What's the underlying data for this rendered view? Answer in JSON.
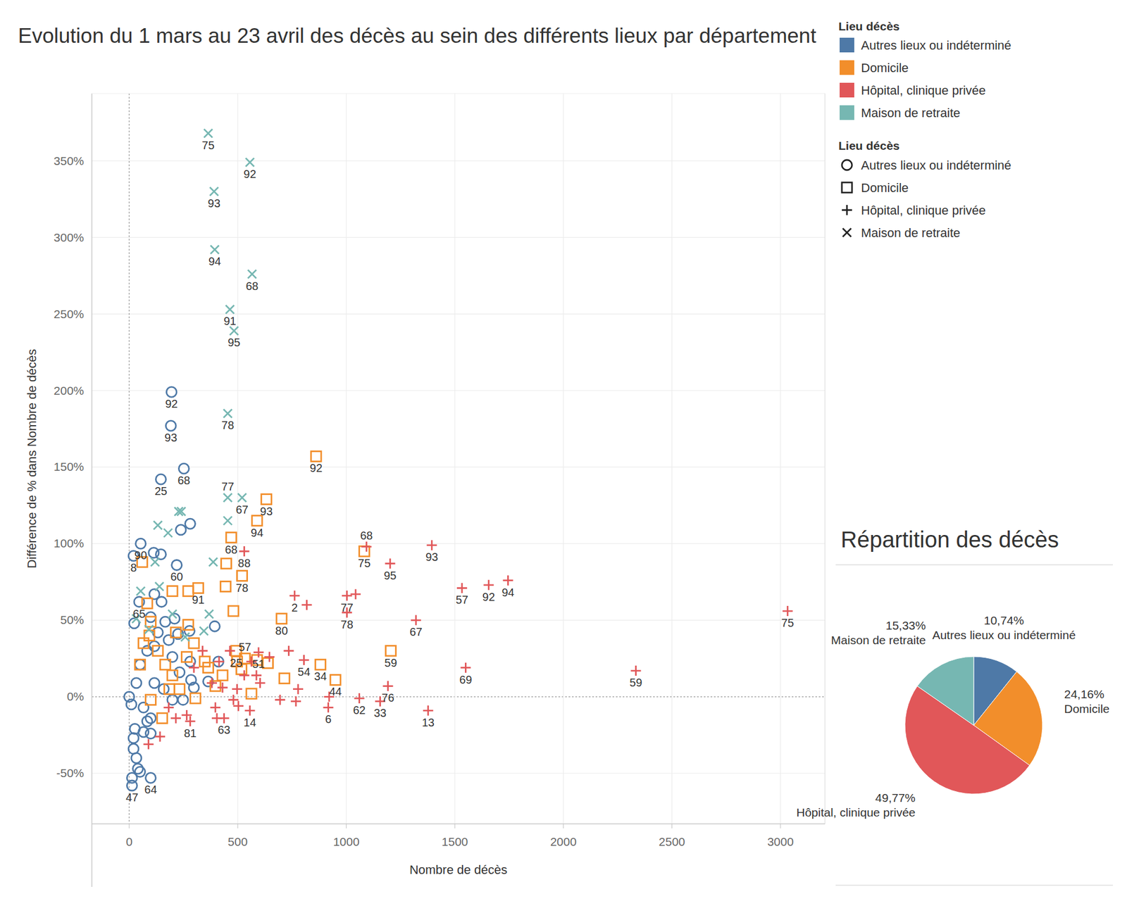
{
  "chart_data": [
    {
      "type": "scatter",
      "title": "Evolution du 1 mars au 23 avril des décès au sein des différents lieux par département",
      "x_label": "Nombre de décès",
      "y_label": "Différence de % dans Nombre de décès",
      "legend_title": "Lieu décès",
      "legend": "right",
      "grid": true,
      "xlim": [
        -172,
        3205
      ],
      "ylim": [
        -83,
        394
      ],
      "xticks": [
        0,
        500,
        1000,
        1500,
        2000,
        2500,
        3000
      ],
      "yticks": [
        {
          "value": -50,
          "label": "-50%"
        },
        {
          "value": 0,
          "label": "0%"
        },
        {
          "value": 50,
          "label": "50%"
        },
        {
          "value": 100,
          "label": "100%"
        },
        {
          "value": 150,
          "label": "150%"
        },
        {
          "value": 200,
          "label": "200%"
        },
        {
          "value": 250,
          "label": "250%"
        },
        {
          "value": 300,
          "label": "300%"
        },
        {
          "value": 350,
          "label": "350%"
        }
      ],
      "series": [
        {
          "name": "Autres lieux ou indéterminé",
          "color": "#4e79a7",
          "marker": "circle",
          "x": [
            195,
            192,
            146,
            252,
            281,
            238,
            53,
            20,
            113,
            146,
            219,
            46,
            13,
            13,
            99,
            394,
            411,
            23,
            26,
            20,
            20,
            33,
            40,
            50,
            0,
            10,
            99,
            66,
            83,
            99,
            33,
            50,
            83,
            116,
            132,
            166,
            209,
            99,
            116,
            149,
            182,
            199,
            232,
            281,
            285,
            298,
            248,
            199,
            159,
            116,
            66,
            364,
            225,
            278
          ],
          "values": [
            199,
            177,
            142,
            149,
            113,
            109,
            100,
            92,
            94,
            93,
            86,
            62,
            -58,
            -53,
            -53,
            46,
            23,
            48,
            -21,
            -27,
            -34,
            -40,
            -47,
            -49,
            0,
            -5,
            -24,
            -23,
            -16,
            -14,
            9,
            21,
            30,
            33,
            42,
            49,
            51,
            52,
            67,
            62,
            37,
            26,
            16,
            23,
            11,
            6,
            -2,
            -2,
            5,
            9,
            -7,
            10,
            41,
            43
          ],
          "point_labels": [
            "92",
            "93",
            "25",
            "68",
            null,
            null,
            "90",
            "8",
            null,
            null,
            "60",
            "65",
            "47",
            null,
            "64",
            null,
            null,
            null,
            null,
            null,
            null,
            null,
            null,
            null,
            null,
            null,
            null,
            null,
            null,
            null,
            null,
            null,
            null,
            null,
            null,
            null,
            null,
            null,
            null,
            null,
            null,
            null,
            null,
            null,
            null,
            null,
            null,
            null,
            null,
            null,
            null,
            null,
            null,
            null
          ]
        },
        {
          "name": "Domicile",
          "color": "#f28e2b",
          "marker": "square",
          "x": [
            861,
            632,
            589,
            470,
            1083,
            520,
            447,
            444,
            480,
            318,
            272,
            199,
            702,
            493,
            533,
            1205,
            950,
            881,
            715,
            563,
            497,
            589,
            639,
            517,
            60,
            83,
            99,
            66,
            50,
            93,
            132,
            166,
            215,
            272,
            298,
            348,
            364,
            305,
            152,
            99,
            232,
            397,
            430,
            199,
            265,
            185
          ],
          "values": [
            157,
            129,
            115,
            104,
            95,
            79,
            87,
            72,
            56,
            71,
            69,
            69,
            51,
            30,
            25,
            30,
            11,
            21,
            12,
            2,
            23,
            24,
            22,
            18,
            88,
            61,
            49,
            35,
            21,
            40,
            30,
            21,
            42,
            47,
            35,
            23,
            19,
            -1,
            -14,
            -2,
            5,
            7,
            14,
            14,
            26,
            5
          ],
          "point_labels": [
            "92",
            "93",
            "94",
            "68",
            "75",
            "78",
            null,
            null,
            null,
            "91",
            null,
            null,
            "80",
            "25",
            "57",
            "59",
            "44",
            "34",
            null,
            null,
            null,
            null,
            null,
            null,
            null,
            null,
            null,
            null,
            null,
            null,
            null,
            null,
            null,
            null,
            null,
            null,
            null,
            null,
            null,
            null,
            null,
            null,
            null,
            null,
            null,
            null
          ]
        },
        {
          "name": "Hôpital, clinique privée",
          "color": "#e15759",
          "marker": "plus",
          "x": [
            3033,
            2334,
            1745,
            1656,
            1533,
            1394,
            1550,
            1377,
            1093,
            1202,
            1321,
            1003,
            1043,
            1003,
            1192,
            1156,
            1060,
            917,
            921,
            762,
            818,
            530,
            805,
            556,
            437,
            281,
            596,
            215,
            142,
            89,
            397,
            480,
            497,
            530,
            586,
            646,
            735,
            695,
            778,
            768,
            563,
            464,
            414,
            381,
            404,
            503,
            265,
            182,
            338,
            298,
            430,
            603
          ],
          "values": [
            56,
            17,
            76,
            73,
            71,
            99,
            19,
            -9,
            98,
            87,
            50,
            66,
            67,
            55,
            7,
            -3,
            -1,
            -7,
            0,
            66,
            60,
            95,
            24,
            -9,
            -14,
            -16,
            29,
            -14,
            -26,
            -31,
            -7,
            -2,
            5,
            14,
            14,
            26,
            30,
            -2,
            5,
            -3,
            23,
            30,
            23,
            9,
            -14,
            -6,
            -12,
            -7,
            30,
            19,
            6,
            9
          ],
          "point_labels": [
            "75",
            "59",
            "94",
            "92",
            "57",
            "93",
            "69",
            "13",
            "68",
            "95",
            "67",
            "77",
            null,
            "78",
            "76",
            "33",
            "62",
            "6",
            null,
            "2",
            null,
            "88",
            "54",
            "14",
            "63",
            "81",
            "51",
            null,
            null,
            null,
            null,
            null,
            null,
            null,
            null,
            null,
            null,
            null,
            null,
            null,
            null,
            null,
            null,
            null,
            null,
            null,
            null,
            null,
            null,
            null,
            null,
            null
          ]
        },
        {
          "name": "Maison de retraite",
          "color": "#76b7b2",
          "marker": "x",
          "x": [
            364,
            556,
            391,
            394,
            566,
            464,
            483,
            454,
            520,
            454,
            454,
            228,
            240,
            132,
            179,
            387,
            119,
            139,
            53,
            368,
            344,
            33,
            199,
            91,
            258
          ],
          "values": [
            368,
            349,
            330,
            292,
            276,
            253,
            239,
            185,
            130,
            130,
            115,
            121,
            121,
            112,
            107,
            88,
            88,
            72,
            69,
            54,
            43,
            51,
            54,
            44,
            39
          ],
          "point_labels": [
            "75",
            "92",
            "93",
            "94",
            "68",
            "91",
            "95",
            "78",
            "67",
            "77",
            null,
            null,
            null,
            null,
            null,
            null,
            null,
            null,
            null,
            null,
            null,
            null,
            null,
            null,
            null
          ]
        }
      ]
    },
    {
      "type": "pie",
      "title": "Répartition des décès",
      "categories": [
        "Autres lieux ou indéterminé",
        "Domicile",
        "Hôpital, clinique privée",
        "Maison de retraite"
      ],
      "values": [
        10.74,
        24.16,
        49.77,
        15.33
      ],
      "value_labels": [
        "10,74%",
        "24,16%",
        "49,77%",
        "15,33%"
      ],
      "colors": [
        "#4e79a7",
        "#f28e2b",
        "#e15759",
        "#76b7b2"
      ],
      "data_labels": true
    }
  ]
}
